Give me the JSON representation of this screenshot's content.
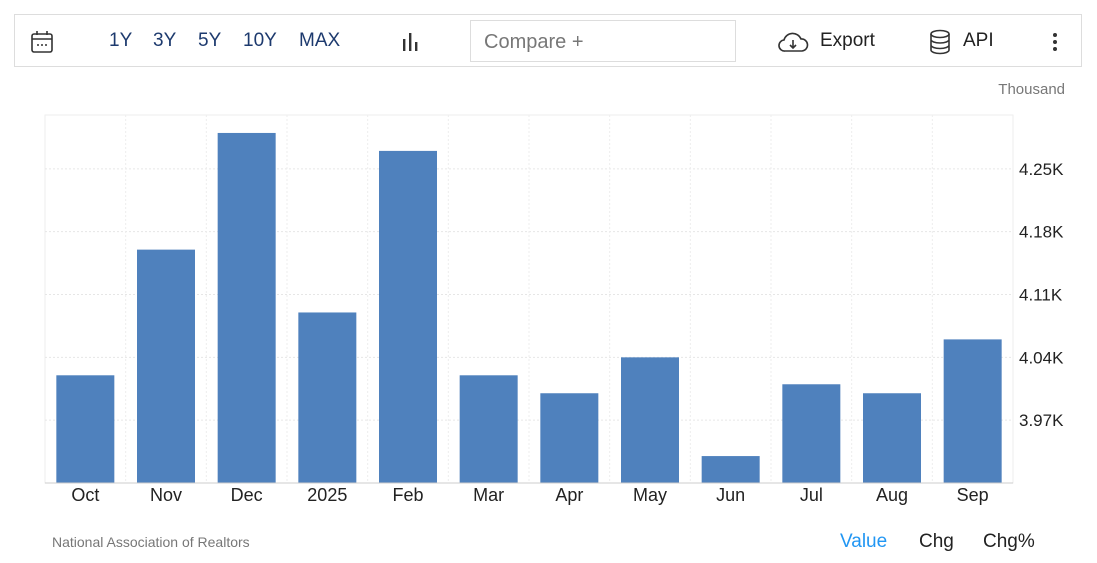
{
  "toolbar": {
    "calendar_icon": "calendar-icon",
    "ranges": [
      "1Y",
      "3Y",
      "5Y",
      "10Y",
      "MAX"
    ],
    "chart_type_icon": "bar-chart-icon",
    "compare_placeholder": "Compare +",
    "export_label": "Export",
    "export_icon": "cloud-download-icon",
    "api_label": "API",
    "api_icon": "database-icon",
    "more_icon": "vertical-dots-icon"
  },
  "chart_data": {
    "type": "bar",
    "unit_label": "Thousand",
    "categories": [
      "Oct",
      "Nov",
      "Dec",
      "2025",
      "Feb",
      "Mar",
      "Apr",
      "May",
      "Jun",
      "Jul",
      "Aug",
      "Sep"
    ],
    "values": [
      4.02,
      4.16,
      4.29,
      4.09,
      4.27,
      4.02,
      4.0,
      4.04,
      3.93,
      4.01,
      4.0,
      4.06
    ],
    "ylim": [
      3.9,
      4.31
    ],
    "yticks": [
      3.97,
      4.04,
      4.11,
      4.18,
      4.25
    ],
    "ytick_labels": [
      "3.97K",
      "4.04K",
      "4.11K",
      "4.18K",
      "4.25K"
    ],
    "grid": true,
    "bar_color": "#4f81bd",
    "axis_position": "right"
  },
  "footer": {
    "source": "National Association of Realtors",
    "modes": [
      "Value",
      "Chg",
      "Chg%"
    ],
    "active_mode": "Value",
    "active_color": "#2196f3"
  }
}
